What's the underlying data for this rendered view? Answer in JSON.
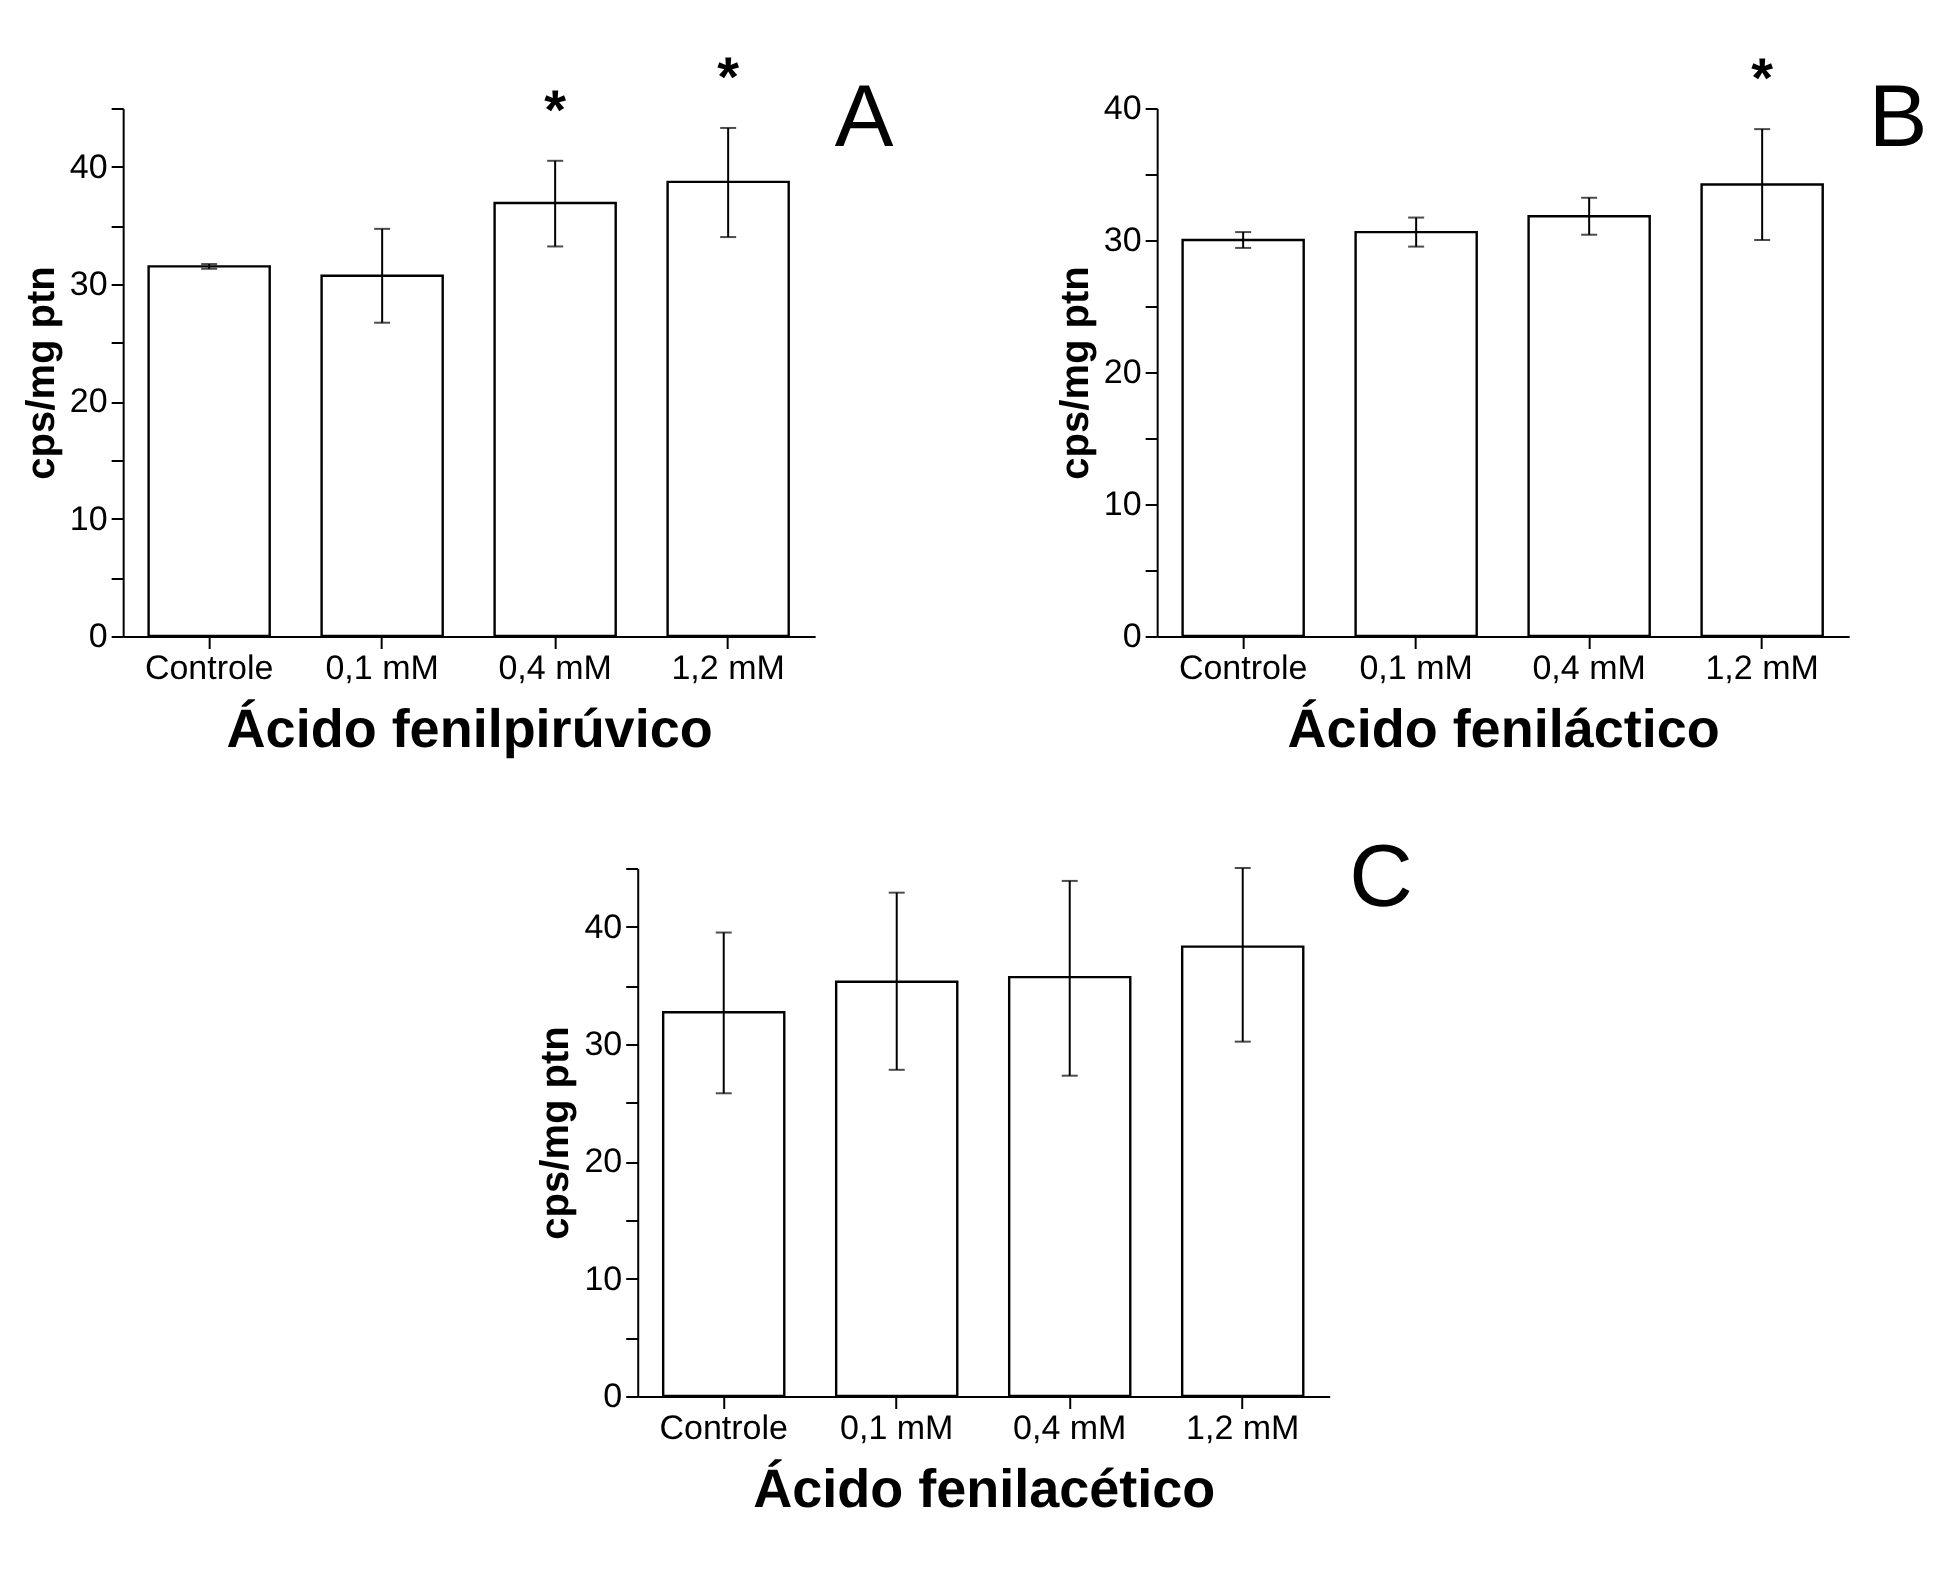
{
  "chart_data": [
    {
      "type": "bar",
      "xlabel": "Ácido fenilpirúvico",
      "ylabel": "cps/mg ptn",
      "categories": [
        "Controle",
        "0,1 mM",
        "0,4 mM",
        "1,2 mM"
      ],
      "series": [
        {
          "color": "#ffffff",
          "values": [
            31.5,
            30.7,
            36.9,
            38.7
          ],
          "errors": [
            0.2,
            4,
            [
              33.2,
              40.5
            ],
            [
              34,
              43.3
            ]
          ],
          "value_labels": [
            null,
            null,
            "*",
            "*"
          ]
        }
      ],
      "ylim": [
        0,
        45
      ],
      "yticks": [
        0,
        {
          "value": 5,
          "label": null
        },
        10,
        {
          "value": 15,
          "label": null
        },
        20,
        {
          "value": 25,
          "label": null
        },
        30,
        {
          "value": 35,
          "label": null
        },
        40,
        {
          "value": 45,
          "label": null
        }
      ],
      "grid": false,
      "annotations": [
        "A"
      ]
    },
    {
      "type": "bar",
      "xlabel": "Ácido feniláctico",
      "ylabel": "cps/mg ptn",
      "categories": [
        "Controle",
        "0,1 mM",
        "0,4 mM",
        "1,2 mM"
      ],
      "series": [
        {
          "color": "#ffffff",
          "values": [
            30,
            30.6,
            31.8,
            34.2
          ],
          "errors": [
            0.6,
            1.1,
            1.4,
            [
              30,
              38.4
            ]
          ],
          "value_labels": [
            null,
            null,
            null,
            "*"
          ]
        }
      ],
      "ylim": [
        0,
        40
      ],
      "yticks": [
        0,
        {
          "value": 5,
          "label": null
        },
        10,
        {
          "value": 15,
          "label": null
        },
        20,
        {
          "value": 25,
          "label": null
        },
        30,
        {
          "value": 35,
          "label": null
        },
        40
      ],
      "grid": false,
      "annotations": [
        "B"
      ]
    },
    {
      "type": "bar",
      "xlabel": "Ácido fenilacético",
      "ylabel": "cps/mg ptn",
      "categories": [
        "Controle",
        "0,1 mM",
        "0,4 mM",
        "1,2 mM"
      ],
      "series": [
        {
          "color": "#ffffff",
          "values": [
            32.7,
            35.3,
            35.7,
            38.3
          ],
          "errors": [
            [
              25.8,
              39.5
            ],
            [
              27.8,
              42.9
            ],
            [
              27.3,
              43.9
            ],
            [
              30.2,
              45
            ]
          ]
        }
      ],
      "ylim": [
        0,
        45
      ],
      "yticks": [
        0,
        {
          "value": 5,
          "label": null
        },
        10,
        {
          "value": 15,
          "label": null
        },
        20,
        {
          "value": 25,
          "label": null
        },
        30,
        {
          "value": 35,
          "label": null
        },
        40,
        {
          "value": 45,
          "label": null
        }
      ],
      "grid": false,
      "annotations": [
        "C"
      ]
    }
  ]
}
